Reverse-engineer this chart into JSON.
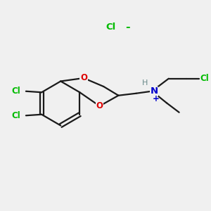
{
  "background_color": "#f0f0f0",
  "bond_color": "#1a1a1a",
  "cl_color": "#00bb00",
  "o_color": "#dd0000",
  "n_color": "#0000cc",
  "h_color": "#6a8a8a",
  "figsize": [
    3.0,
    3.0
  ],
  "dpi": 100,
  "xlim": [
    0,
    10
  ],
  "ylim": [
    0,
    10
  ]
}
